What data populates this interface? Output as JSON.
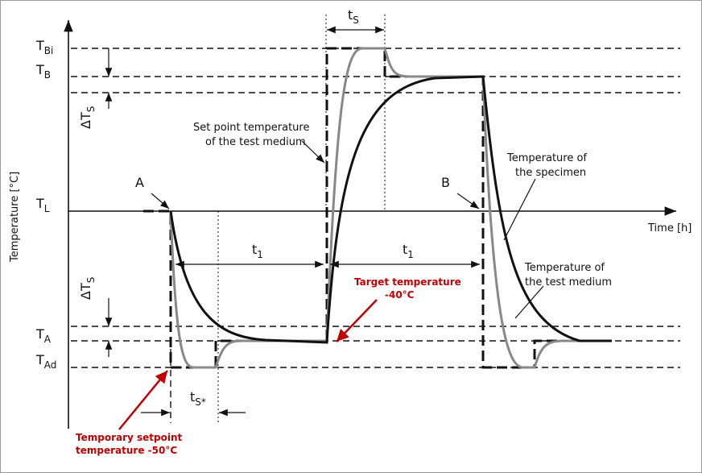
{
  "levels": [
    {
      "main": "T",
      "sub": "Bi"
    },
    {
      "main": "T",
      "sub": "B"
    },
    {
      "main": "T",
      "sub": "L"
    },
    {
      "main": "T",
      "sub": "A"
    },
    {
      "main": "T",
      "sub": "Ad"
    }
  ],
  "delta_upper": {
    "main": "ΔT",
    "sub": "S"
  },
  "delta_lower": {
    "main": "ΔT",
    "sub": "S"
  },
  "y_axis_label": "Temperature [°C]",
  "x_axis_label": "Time [h]",
  "ts_top": {
    "main": "t",
    "sub": "S"
  },
  "t1_left": {
    "main": "t",
    "sub": "1"
  },
  "t1_right": {
    "main": "t",
    "sub": "1"
  },
  "ts_star": {
    "main": "t",
    "sub": "S*"
  },
  "point_a": "A",
  "point_b": "B",
  "setpoint_note": [
    "Set point temperature",
    "of the test medium"
  ],
  "specimen_note": [
    "Temperature of",
    "the specimen"
  ],
  "medium_note": [
    "Temperature of",
    "the test medium"
  ],
  "target_note": [
    "Target temperature",
    "-40°C"
  ],
  "temporary_note": [
    "Temporary setpoint",
    "temperature -50°C"
  ]
}
